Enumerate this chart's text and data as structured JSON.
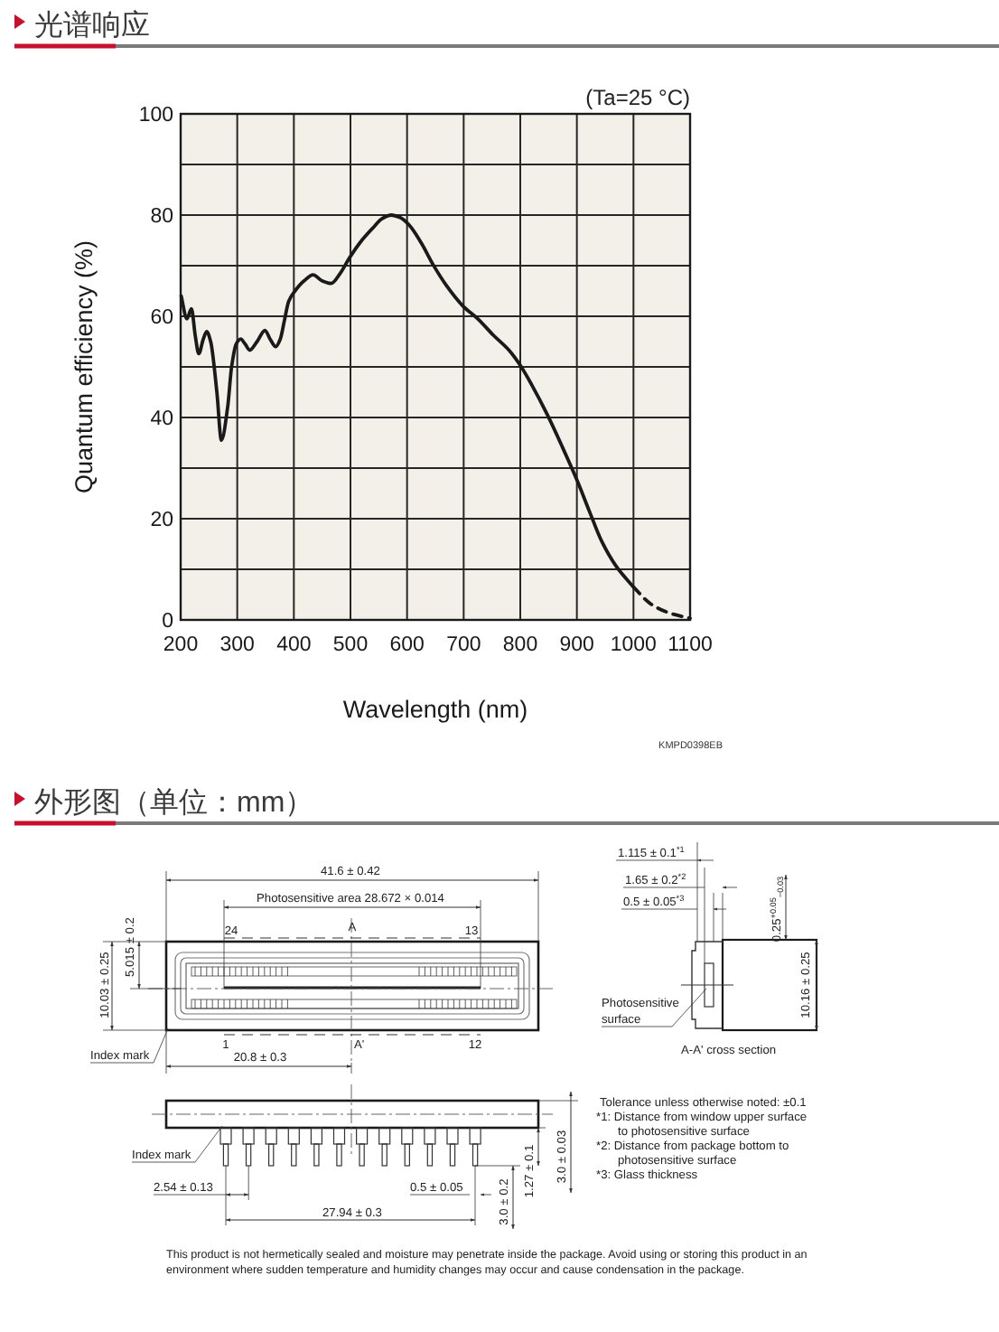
{
  "chart_data": [
    {
      "type": "line",
      "title": "光谱响应",
      "xlabel": "Wavelength (nm)",
      "ylabel": "Quantum efficiency (%)",
      "annotations": [
        "(Ta=25 °C)",
        "KMPD0398EB"
      ],
      "xlim": [
        200,
        1100
      ],
      "ylim": [
        0,
        100
      ],
      "xticks": [
        200,
        300,
        400,
        500,
        600,
        700,
        800,
        900,
        1000,
        1100
      ],
      "yticks": [
        0,
        {
          "value": 10,
          "label": null
        },
        20,
        {
          "value": 30,
          "label": null
        },
        40,
        {
          "value": 50,
          "label": null
        },
        60,
        {
          "value": 70,
          "label": null
        },
        80,
        {
          "value": 90,
          "label": null
        },
        100
      ],
      "grid": true,
      "series": [
        {
          "color": "#1a1a1a",
          "line_style": "solid",
          "x": [
            201,
            211,
            219,
            226,
            232,
            240,
            246,
            253,
            264,
            272,
            283,
            290,
            298,
            306,
            314,
            322,
            335,
            349,
            358,
            368,
            376,
            383,
            391,
            402,
            418,
            434,
            450,
            466,
            482,
            498,
            520,
            540,
            556,
            572,
            588,
            604,
            625,
            646,
            670,
            699,
            725,
            753,
            780,
            800,
            820,
            848,
            875,
            901,
            922,
            944,
            970,
            1000
          ],
          "values": [
            64,
            59.5,
            61.5,
            56,
            52.6,
            55.5,
            57,
            55,
            45,
            35.5,
            42,
            50,
            54.5,
            55.5,
            54.5,
            53.3,
            55,
            57.2,
            55.5,
            54,
            55.5,
            59,
            63,
            65,
            67,
            68.2,
            67,
            66.5,
            68.5,
            71.5,
            75,
            77.5,
            79.3,
            80,
            79.5,
            78,
            74.5,
            70.2,
            66,
            62,
            59.5,
            56.2,
            53.3,
            50.3,
            46.5,
            40.5,
            34,
            27.4,
            21.5,
            15.5,
            10.5,
            6.5
          ]
        },
        {
          "color": "#1a1a1a",
          "line_style": "dashed",
          "x": [
            1000,
            1030,
            1060,
            1100
          ],
          "values": [
            6.5,
            3.2,
            1.5,
            0.3
          ]
        }
      ]
    },
    {
      "type": "other",
      "title": "外形图（单位：mm）",
      "annotations": [
        "41.6 ± 0.42",
        "Photosensitive area 28.672 × 0.014",
        "24",
        "A",
        "13",
        "10.03 ± 0.25",
        "5.015 ± 0.2",
        "1",
        "A'",
        "12",
        "Index mark",
        "20.8 ± 0.3",
        "1.115 ± 0.1$^{*1}$",
        "1.65 ± 0.2$^{*2}$",
        "0.5 ± 0.05$^{*3}$",
        "0.25$^{+0.05}$$_{−0.03}$",
        "Photosensitive surface",
        "A-A' cross section",
        "10.16 ± 0.25",
        "Index mark",
        "2.54 ± 0.13",
        "0.5 ± 0.05",
        "27.94 ± 0.3",
        "3.0 ± 0.2",
        "1.27 ± 0.1",
        "3.0 ± 0.03",
        "Tolerance unless otherwise noted: ±0.1",
        "*1: Distance from window upper surface to photosensitive surface",
        "*2: Distance from package bottom to photosensitive surface",
        "*3: Glass thickness",
        "This product is not hermetically sealed and moisture may penetrate inside the package. Avoid using or storing this product in an environment where sudden temperature and humidity changes may occur and cause condensation in the package."
      ]
    }
  ]
}
